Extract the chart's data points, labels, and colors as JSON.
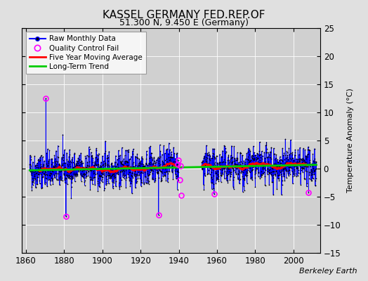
{
  "title": "KASSEL GERMANY FED.REP.OF",
  "subtitle": "51.300 N, 9.450 E (Germany)",
  "ylabel": "Temperature Anomaly (°C)",
  "credit": "Berkeley Earth",
  "xlim": [
    1858,
    2014
  ],
  "ylim": [
    -15,
    25
  ],
  "yticks": [
    -15,
    -10,
    -5,
    0,
    5,
    10,
    15,
    20,
    25
  ],
  "xticks": [
    1860,
    1880,
    1900,
    1920,
    1940,
    1960,
    1980,
    2000
  ],
  "fig_bg_color": "#e0e0e0",
  "plot_bg_color": "#d0d0d0",
  "raw_line_color": "#0000ff",
  "raw_dot_color": "#000000",
  "moving_avg_color": "#ff0000",
  "trend_color": "#00cc00",
  "qc_fail_color": "#ff00ff",
  "grid_color": "#ffffff",
  "seed": 42,
  "start_year": 1862,
  "end_year": 2012,
  "n_months": 1812,
  "gap_start": 1940,
  "gap_end": 1952
}
